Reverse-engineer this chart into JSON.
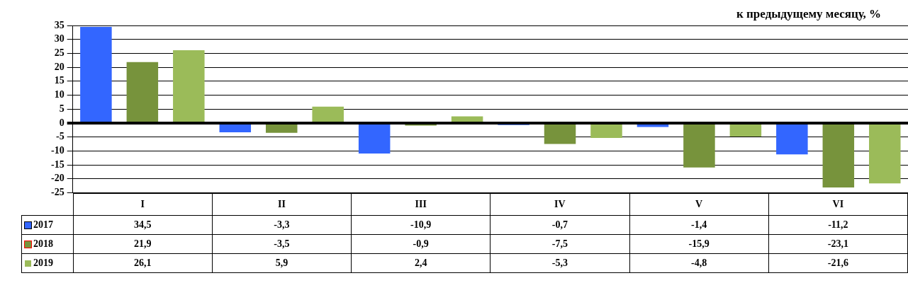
{
  "chart_data": {
    "type": "bar",
    "title": "к предыдущему месяцу, %",
    "categories": [
      "I",
      "II",
      "III",
      "IV",
      "V",
      "VI"
    ],
    "series": [
      {
        "name": "2017",
        "color": "#3366ff",
        "values": [
          34.5,
          -3.3,
          -10.9,
          -0.7,
          -1.4,
          -11.2
        ],
        "value_labels": [
          "34,5",
          "-3,3",
          "-10,9",
          "-0,7",
          "-1,4",
          "-11,2"
        ]
      },
      {
        "name": "2018",
        "color": "#77933c",
        "values": [
          21.9,
          -3.5,
          -0.9,
          -7.5,
          -15.9,
          -23.1
        ],
        "value_labels": [
          "21,9",
          "-3,5",
          "-0,9",
          "-7,5",
          "-15,9",
          "-23,1"
        ]
      },
      {
        "name": "2019",
        "color": "#9bbb59",
        "values": [
          26.1,
          5.9,
          2.4,
          -5.3,
          -4.8,
          -21.6
        ],
        "value_labels": [
          "26,1",
          "5,9",
          "2,4",
          "-5,3",
          "-4,8",
          "-21,6"
        ]
      }
    ],
    "ylim": [
      -25,
      35
    ],
    "yticks": [
      -25,
      -20,
      -15,
      -10,
      -5,
      0,
      5,
      10,
      15,
      20,
      25,
      30,
      35
    ],
    "grid": "y",
    "legend": "bottom"
  }
}
